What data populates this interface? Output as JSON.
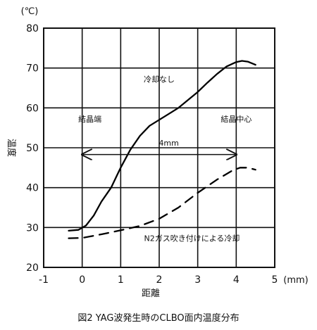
{
  "chart_data": {
    "type": "line",
    "title": "図2 YAG波発生時のCLBO面内温度分布",
    "xlabel": "距離",
    "xunit": "(mm)",
    "ylabel": "温度",
    "yunit": "(℃)",
    "xlim": [
      -1,
      5
    ],
    "ylim": [
      20,
      80
    ],
    "xticks": [
      "-1",
      "0",
      "1",
      "2",
      "3",
      "4",
      "5"
    ],
    "yticks": [
      "20",
      "30",
      "40",
      "50",
      "60",
      "70",
      "80"
    ],
    "grid": true,
    "series": [
      {
        "name": "冷却なし",
        "style": "solid",
        "color": "#000000",
        "points": [
          {
            "x": -0.35,
            "y": 29.2
          },
          {
            "x": -0.1,
            "y": 29.4
          },
          {
            "x": 0.1,
            "y": 30.5
          },
          {
            "x": 0.3,
            "y": 33.0
          },
          {
            "x": 0.5,
            "y": 36.5
          },
          {
            "x": 0.75,
            "y": 40.0
          },
          {
            "x": 1.0,
            "y": 45.0
          },
          {
            "x": 1.25,
            "y": 49.5
          },
          {
            "x": 1.5,
            "y": 53.0
          },
          {
            "x": 1.75,
            "y": 55.5
          },
          {
            "x": 2.0,
            "y": 57.0
          },
          {
            "x": 2.25,
            "y": 58.5
          },
          {
            "x": 2.5,
            "y": 60.0
          },
          {
            "x": 2.75,
            "y": 62.0
          },
          {
            "x": 3.0,
            "y": 64.0
          },
          {
            "x": 3.25,
            "y": 66.3
          },
          {
            "x": 3.5,
            "y": 68.5
          },
          {
            "x": 3.75,
            "y": 70.4
          },
          {
            "x": 4.0,
            "y": 71.5
          },
          {
            "x": 4.15,
            "y": 71.8
          },
          {
            "x": 4.3,
            "y": 71.6
          },
          {
            "x": 4.5,
            "y": 70.8
          }
        ]
      },
      {
        "name": "N2ガス吹き付けによる冷却",
        "style": "dashed",
        "color": "#000000",
        "points": [
          {
            "x": -0.35,
            "y": 27.3
          },
          {
            "x": 0.0,
            "y": 27.4
          },
          {
            "x": 0.5,
            "y": 28.3
          },
          {
            "x": 1.0,
            "y": 29.3
          },
          {
            "x": 1.5,
            "y": 30.4
          },
          {
            "x": 2.0,
            "y": 32.2
          },
          {
            "x": 2.5,
            "y": 35.0
          },
          {
            "x": 3.0,
            "y": 38.7
          },
          {
            "x": 3.5,
            "y": 42.0
          },
          {
            "x": 3.9,
            "y": 44.3
          },
          {
            "x": 4.1,
            "y": 45.0
          },
          {
            "x": 4.3,
            "y": 45.0
          },
          {
            "x": 4.5,
            "y": 44.5
          }
        ]
      }
    ],
    "annotations": [
      {
        "text": "冷却なし",
        "x": 2.0,
        "y": 66.5
      },
      {
        "text": "結晶端",
        "x": 0.2,
        "y": 56.5
      },
      {
        "text": "結晶中心",
        "x": 4.0,
        "y": 56.5
      },
      {
        "text": "4mm",
        "x": 2.25,
        "y": 50.5
      },
      {
        "text": "N2ガス吹き付けによる冷却",
        "x": 2.85,
        "y": 26.6
      }
    ],
    "arrow": {
      "x1": 0,
      "x2": 4,
      "y": 48.3
    }
  }
}
